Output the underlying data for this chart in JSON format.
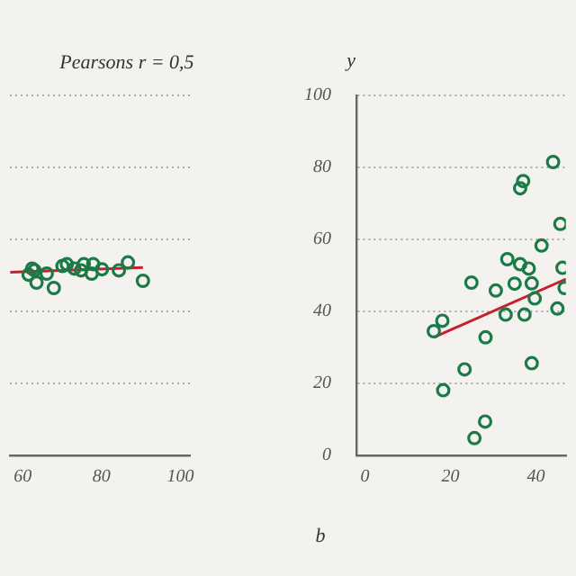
{
  "chart_data": [
    {
      "type": "scatter",
      "annotations": [
        "Pearsons r = 0,5"
      ],
      "xlim": [
        56.8,
        102.4
      ],
      "xticks": [
        60,
        80,
        100
      ],
      "ylim": [
        0,
        100
      ],
      "yticks": [
        0,
        20,
        40,
        60,
        80,
        100
      ],
      "grid": "y",
      "tick_labels": "x",
      "legend": false,
      "series": [
        {
          "type": "scatter",
          "marker": "circle",
          "color": "#1b7a45",
          "x": [
            61.5,
            62.4,
            63,
            63.5,
            66.1,
            67.9,
            70.1,
            71.2,
            73.1,
            74.8,
            75.5,
            77.5,
            77.9,
            80.1,
            84.4,
            86.7,
            90.5
          ],
          "values": [
            50.2,
            51.9,
            51.4,
            48,
            50.5,
            46.5,
            52.6,
            53.1,
            51.9,
            51.4,
            53.1,
            50.5,
            53.1,
            51.7,
            51.4,
            53.6,
            48.5
          ]
        },
        {
          "type": "line",
          "marker": "none",
          "color": "#c8202a",
          "x": [
            56.8,
            90.5
          ],
          "values": [
            50.9,
            52.2
          ]
        }
      ]
    },
    {
      "type": "scatter",
      "ylabel": "y",
      "annotations": [
        "b"
      ],
      "xlim": [
        -2,
        47
      ],
      "xticks": [
        0,
        20,
        40
      ],
      "ylim": [
        0,
        100
      ],
      "yticks": [
        0,
        20,
        40,
        60,
        80,
        100
      ],
      "grid": "y",
      "legend": false,
      "series": [
        {
          "type": "scatter",
          "marker": "circle",
          "color": "#1b7a45",
          "x": [
            16.1,
            18.1,
            18.3,
            23.3,
            24.9,
            25.6,
            28.2,
            28.1,
            30.6,
            32.9,
            33.3,
            35,
            36.3,
            36.3,
            37,
            37.3,
            38.3,
            39,
            39,
            39.7,
            41.3,
            44,
            45,
            45.7,
            46.2,
            46.7
          ],
          "values": [
            34.5,
            37.4,
            18.1,
            23.9,
            48,
            4.8,
            32.8,
            9.4,
            45.8,
            39.1,
            54.5,
            47.7,
            53.1,
            74.2,
            76.2,
            39.1,
            51.9,
            47.8,
            25.6,
            43.6,
            58.3,
            81.5,
            40.8,
            64.3,
            52.1,
            46.5
          ]
        },
        {
          "type": "line",
          "marker": "none",
          "color": "#c8202a",
          "x": [
            16.1,
            47
          ],
          "values": [
            32.8,
            49
          ]
        }
      ]
    }
  ]
}
